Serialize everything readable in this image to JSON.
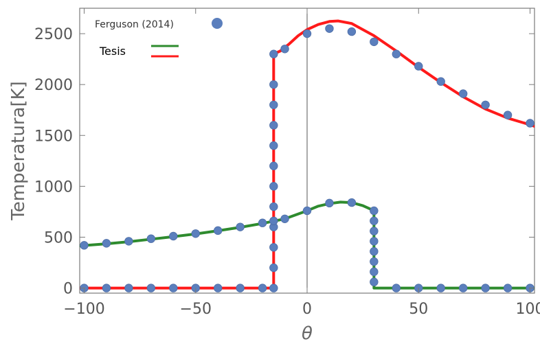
{
  "chart_data": {
    "type": "line",
    "xlabel": "θ",
    "ylabel": "Temperatura[K]",
    "xlim": [
      -102,
      102
    ],
    "ylim": [
      -50,
      2750
    ],
    "xticks": [
      -100,
      -50,
      0,
      50,
      100
    ],
    "xtick_labels": [
      "−100",
      "−50",
      "0",
      "50",
      "100"
    ],
    "yticks": [
      0,
      500,
      1000,
      1500,
      2000,
      2500
    ],
    "ytick_labels": [
      "0",
      "500",
      "1000",
      "1500",
      "2000",
      "2500"
    ],
    "grid": false,
    "legend_position": "top-left",
    "vertical_reference_line_x": 0,
    "series": [
      {
        "name": "Ferguson (2014)",
        "kind": "markers",
        "color": "#5b7fbd",
        "points": [
          [
            -100,
            0
          ],
          [
            -90,
            0
          ],
          [
            -80,
            0
          ],
          [
            -70,
            0
          ],
          [
            -60,
            0
          ],
          [
            -50,
            0
          ],
          [
            -40,
            0
          ],
          [
            -30,
            0
          ],
          [
            -20,
            0
          ],
          [
            -15,
            0
          ],
          [
            -15,
            200
          ],
          [
            -15,
            400
          ],
          [
            -15,
            600
          ],
          [
            -15,
            800
          ],
          [
            -15,
            1000
          ],
          [
            -15,
            1200
          ],
          [
            -15,
            1400
          ],
          [
            -15,
            1600
          ],
          [
            -15,
            1800
          ],
          [
            -15,
            2000
          ],
          [
            -15,
            2300
          ],
          [
            -10,
            2350
          ],
          [
            0,
            2500
          ],
          [
            10,
            2550
          ],
          [
            20,
            2520
          ],
          [
            30,
            2420
          ],
          [
            40,
            2300
          ],
          [
            50,
            2180
          ],
          [
            60,
            2030
          ],
          [
            70,
            1910
          ],
          [
            80,
            1800
          ],
          [
            90,
            1700
          ],
          [
            100,
            1620
          ],
          [
            -100,
            420
          ],
          [
            -90,
            440
          ],
          [
            -80,
            460
          ],
          [
            -70,
            485
          ],
          [
            -60,
            510
          ],
          [
            -50,
            535
          ],
          [
            -40,
            565
          ],
          [
            -30,
            600
          ],
          [
            -20,
            640
          ],
          [
            -15,
            660
          ],
          [
            -10,
            680
          ],
          [
            0,
            760
          ],
          [
            10,
            835
          ],
          [
            20,
            840
          ],
          [
            30,
            760
          ],
          [
            30,
            660
          ],
          [
            30,
            560
          ],
          [
            30,
            460
          ],
          [
            30,
            360
          ],
          [
            30,
            260
          ],
          [
            30,
            160
          ],
          [
            30,
            60
          ],
          [
            40,
            0
          ],
          [
            50,
            0
          ],
          [
            60,
            0
          ],
          [
            70,
            0
          ],
          [
            80,
            0
          ],
          [
            90,
            0
          ],
          [
            100,
            0
          ]
        ]
      },
      {
        "name": "Tesis",
        "kind": "line",
        "color": "#2e8b2e",
        "points": [
          [
            -102,
            415
          ],
          [
            -90,
            435
          ],
          [
            -80,
            455
          ],
          [
            -70,
            480
          ],
          [
            -60,
            505
          ],
          [
            -50,
            532
          ],
          [
            -40,
            563
          ],
          [
            -30,
            597
          ],
          [
            -20,
            635
          ],
          [
            -10,
            680
          ],
          [
            0,
            760
          ],
          [
            5,
            805
          ],
          [
            10,
            830
          ],
          [
            15,
            845
          ],
          [
            20,
            840
          ],
          [
            25,
            810
          ],
          [
            28,
            780
          ],
          [
            30,
            760
          ],
          [
            30,
            0
          ],
          [
            102,
            0
          ]
        ]
      },
      {
        "name": "Tesis",
        "kind": "line",
        "color": "#ff1a1a",
        "points": [
          [
            -102,
            0
          ],
          [
            -15,
            0
          ],
          [
            -15,
            2300
          ],
          [
            -12,
            2330
          ],
          [
            -8,
            2400
          ],
          [
            -4,
            2480
          ],
          [
            0,
            2540
          ],
          [
            5,
            2590
          ],
          [
            10,
            2620
          ],
          [
            14,
            2625
          ],
          [
            20,
            2600
          ],
          [
            30,
            2480
          ],
          [
            40,
            2330
          ],
          [
            50,
            2170
          ],
          [
            60,
            2020
          ],
          [
            70,
            1880
          ],
          [
            80,
            1760
          ],
          [
            90,
            1670
          ],
          [
            100,
            1605
          ],
          [
            102,
            1590
          ]
        ]
      }
    ],
    "legend": [
      {
        "label": "Ferguson (2014)",
        "swatch": "marker",
        "color": "#5b7fbd"
      },
      {
        "label": "Tesis",
        "swatch": "lines",
        "colors": [
          "#2e8b2e",
          "#ff1a1a"
        ]
      }
    ]
  }
}
